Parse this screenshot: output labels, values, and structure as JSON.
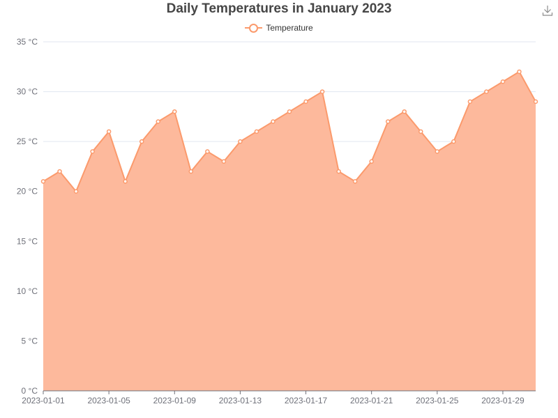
{
  "chart_data": {
    "type": "area",
    "title": "Daily Temperatures in January 2023",
    "legend": {
      "position": "top-center",
      "entries": [
        "Temperature"
      ]
    },
    "x": [
      "2023-01-01",
      "2023-01-02",
      "2023-01-03",
      "2023-01-04",
      "2023-01-05",
      "2023-01-06",
      "2023-01-07",
      "2023-01-08",
      "2023-01-09",
      "2023-01-10",
      "2023-01-11",
      "2023-01-12",
      "2023-01-13",
      "2023-01-14",
      "2023-01-15",
      "2023-01-16",
      "2023-01-17",
      "2023-01-18",
      "2023-01-19",
      "2023-01-20",
      "2023-01-21",
      "2023-01-22",
      "2023-01-23",
      "2023-01-24",
      "2023-01-25",
      "2023-01-26",
      "2023-01-27",
      "2023-01-28",
      "2023-01-29",
      "2023-01-30",
      "2023-01-31"
    ],
    "x_tick_labels": [
      "2023-01-01",
      "2023-01-05",
      "2023-01-09",
      "2023-01-13",
      "2023-01-17",
      "2023-01-21",
      "2023-01-25",
      "2023-01-29"
    ],
    "series": [
      {
        "name": "Temperature",
        "values": [
          21,
          22,
          20,
          24,
          26,
          21,
          25,
          27,
          28,
          22,
          24,
          23,
          25,
          26,
          27,
          28,
          29,
          30,
          22,
          21,
          23,
          27,
          28,
          26,
          24,
          25,
          29,
          30,
          31,
          32,
          29
        ]
      }
    ],
    "ylim": [
      0,
      35
    ],
    "y_ticks": [
      0,
      5,
      10,
      15,
      20,
      25,
      30,
      35
    ],
    "y_unit": "°C",
    "grid": true,
    "colors": {
      "line": "#fb9a6c",
      "area": "#fdb99c"
    }
  },
  "toolbar": {
    "download_icon": "download-icon"
  }
}
